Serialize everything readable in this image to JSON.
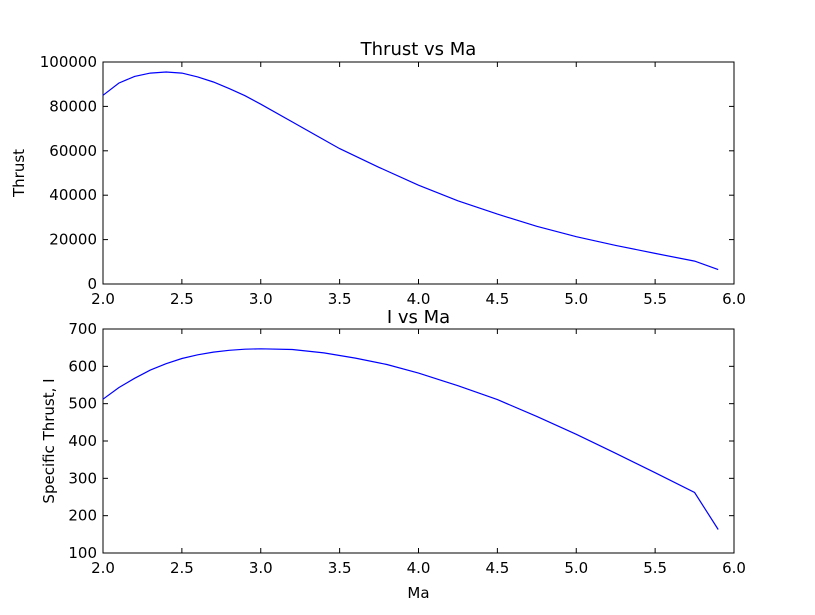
{
  "chart_data": [
    {
      "type": "line",
      "title": "Thrust vs Ma",
      "xlabel": "",
      "ylabel": "Thrust",
      "xlim": [
        2.0,
        6.0
      ],
      "ylim": [
        0,
        100000
      ],
      "xticks": [
        "2.0",
        "2.5",
        "3.0",
        "3.5",
        "4.0",
        "4.5",
        "5.0",
        "5.5",
        "6.0"
      ],
      "yticks": [
        "0",
        "20000",
        "40000",
        "60000",
        "80000",
        "100000"
      ],
      "grid": false,
      "color": "#0000ff",
      "x": [
        2.0,
        2.1,
        2.2,
        2.3,
        2.4,
        2.5,
        2.6,
        2.7,
        2.8,
        2.9,
        3.0,
        3.25,
        3.5,
        3.75,
        4.0,
        4.25,
        4.5,
        4.75,
        5.0,
        5.25,
        5.5,
        5.75,
        5.9
      ],
      "y": [
        85000,
        90500,
        93500,
        95000,
        95500,
        95000,
        93300,
        91000,
        88000,
        84800,
        81000,
        71000,
        61000,
        52500,
        44500,
        37500,
        31500,
        26000,
        21300,
        17400,
        13800,
        10300,
        6500
      ]
    },
    {
      "type": "line",
      "title": "I vs Ma",
      "xlabel": "Ma",
      "ylabel": "Specific Thrust, I",
      "xlim": [
        2.0,
        6.0
      ],
      "ylim": [
        100,
        700
      ],
      "xticks": [
        "2.0",
        "2.5",
        "3.0",
        "3.5",
        "4.0",
        "4.5",
        "5.0",
        "5.5",
        "6.0"
      ],
      "yticks": [
        "100",
        "200",
        "300",
        "400",
        "500",
        "600",
        "700"
      ],
      "grid": false,
      "color": "#0000ff",
      "x": [
        2.0,
        2.1,
        2.2,
        2.3,
        2.4,
        2.5,
        2.6,
        2.7,
        2.8,
        2.9,
        3.0,
        3.2,
        3.4,
        3.6,
        3.8,
        4.0,
        4.25,
        4.5,
        4.75,
        5.0,
        5.25,
        5.5,
        5.75,
        5.9
      ],
      "y": [
        512,
        543,
        568,
        590,
        607,
        621,
        631,
        638,
        643,
        646,
        647,
        645,
        636,
        622,
        605,
        582,
        548,
        511,
        466,
        418,
        367,
        315,
        262,
        163
      ]
    }
  ]
}
